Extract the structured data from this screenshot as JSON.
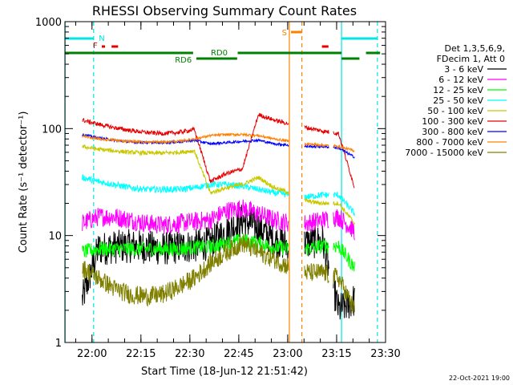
{
  "chart_data": {
    "type": "line",
    "title": "RHESSI Observing Summary Count Rates",
    "xlabel": "Start Time (18-Jun-12 21:51:42)",
    "ylabel": "Count Rate (s⁻¹ detector⁻¹)",
    "yscale": "log",
    "xlim": [
      "21:51:42",
      "23:30:00"
    ],
    "ylim": [
      1,
      1000
    ],
    "x_ticks": [
      "22:00",
      "22:15",
      "22:30",
      "22:45",
      "23:00",
      "23:15",
      "23:30"
    ],
    "y_ticks": [
      "1",
      "10",
      "100",
      "1000"
    ],
    "grid": false,
    "legend_position": "right",
    "legend_header": [
      "Det 1,3,5,6,9,",
      "FDecim 1, Att 0"
    ],
    "footer_date": "22-Oct-2021 19:00",
    "flags": {
      "N": {
        "label": "N",
        "color": "#00e5e5"
      },
      "F": {
        "label": "F",
        "color": "#e60000"
      },
      "S": {
        "label": "S",
        "color": "#ff8000"
      },
      "RD0": {
        "label": "RD0",
        "color": "#008000"
      },
      "RD6": {
        "label": "RD6",
        "color": "#008000"
      }
    },
    "series": [
      {
        "name": "3 - 6 keV",
        "color": "#000000",
        "values": [
          2.5,
          7.5,
          7.8,
          8.0,
          7.8,
          7.5,
          7.8,
          8.0,
          8.5,
          11,
          14,
          12,
          9,
          8,
          8.5,
          9,
          2,
          2.5
        ]
      },
      {
        "name": "6 - 12 keV",
        "color": "#ff00ff",
        "values": [
          13,
          15,
          15,
          14,
          13,
          12.5,
          13,
          13.5,
          14,
          17,
          18,
          16,
          14,
          13,
          13,
          14,
          15,
          11
        ]
      },
      {
        "name": "12 - 25 keV",
        "color": "#00ff00",
        "values": [
          7,
          7.5,
          7.5,
          7.5,
          7.5,
          7.5,
          7.5,
          7.8,
          7.8,
          8.5,
          9,
          8.5,
          7.8,
          7.5,
          7.5,
          8,
          8,
          5
        ]
      },
      {
        "name": "25 - 50 keV",
        "color": "#00ffff",
        "values": [
          35,
          32,
          30,
          28,
          27,
          27,
          27,
          28,
          30,
          30,
          29,
          27,
          25,
          24,
          23,
          24,
          24,
          16
        ]
      },
      {
        "name": "50 - 100 keV",
        "color": "#c8c800",
        "values": [
          68,
          64,
          62,
          60,
          59,
          59,
          60,
          62,
          25,
          28,
          30,
          35,
          28,
          25,
          21,
          20,
          20,
          13
        ]
      },
      {
        "name": "100 - 300 keV",
        "color": "#e60000",
        "values": [
          120,
          110,
          102,
          96,
          92,
          90,
          92,
          98,
          32,
          38,
          42,
          135,
          120,
          110,
          102,
          95,
          90,
          28
        ]
      },
      {
        "name": "300 - 800 keV",
        "color": "#0000ff",
        "values": [
          88,
          82,
          78,
          75,
          74,
          74,
          75,
          78,
          72,
          74,
          76,
          78,
          72,
          70,
          68,
          68,
          66,
          54
        ]
      },
      {
        "name": "800 - 7000 keV",
        "color": "#ff8000",
        "values": [
          85,
          80,
          78,
          76,
          75,
          75,
          76,
          80,
          86,
          88,
          88,
          86,
          80,
          76,
          72,
          70,
          68,
          62
        ]
      },
      {
        "name": "7000 - 15000 keV",
        "color": "#808000",
        "values": [
          5,
          4,
          3.2,
          2.8,
          2.7,
          2.8,
          3.3,
          4,
          5.5,
          7,
          8.5,
          7,
          6,
          5,
          4.5,
          4.5,
          4,
          2
        ]
      }
    ]
  }
}
